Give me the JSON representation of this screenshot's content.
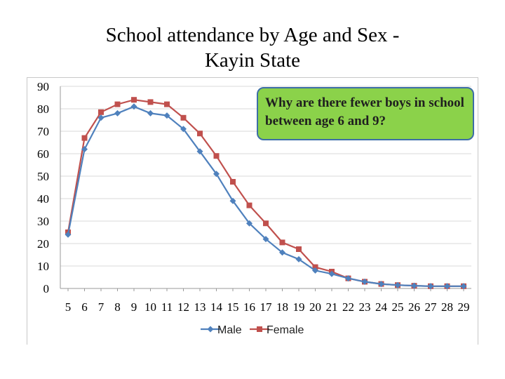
{
  "title": {
    "line1": "School attendance by Age and Sex -",
    "line2": "Kayin State"
  },
  "callout": {
    "text": "Why are there fewer boys in school between age 6 and 9?"
  },
  "colors": {
    "male": "#4f81bd",
    "female": "#c0504d",
    "grid": "#d9d9d9",
    "callout_bg": "#8bd24a",
    "callout_border": "#3d6ea6"
  },
  "chart_data": {
    "type": "line",
    "title": "School attendance by Age and Sex - Kayin State",
    "xlabel": "",
    "ylabel": "",
    "ylim": [
      0,
      90
    ],
    "yticks": [
      0,
      10,
      20,
      30,
      40,
      50,
      60,
      70,
      80,
      90
    ],
    "grid": true,
    "legend_position": "bottom",
    "categories": [
      "5",
      "6",
      "7",
      "8",
      "9",
      "10",
      "11",
      "12",
      "13",
      "14",
      "15",
      "16",
      "17",
      "18",
      "19",
      "20",
      "21",
      "22",
      "23",
      "24",
      "25",
      "26",
      "27",
      "28",
      "29"
    ],
    "series": [
      {
        "name": "Male",
        "marker": "diamond",
        "values": [
          24,
          62,
          76,
          78,
          81,
          78,
          77,
          71,
          61,
          51,
          39,
          29,
          22,
          16,
          13,
          8,
          6.5,
          4.5,
          3,
          2,
          1.5,
          1.2,
          1,
          1,
          1
        ]
      },
      {
        "name": "Female",
        "marker": "square",
        "values": [
          25,
          67,
          78.5,
          82,
          84,
          83,
          82,
          76,
          69,
          59,
          47.5,
          37,
          29,
          20.5,
          17.5,
          9.5,
          7.5,
          4.5,
          3,
          2,
          1.5,
          1.2,
          1,
          1,
          1
        ]
      }
    ]
  }
}
